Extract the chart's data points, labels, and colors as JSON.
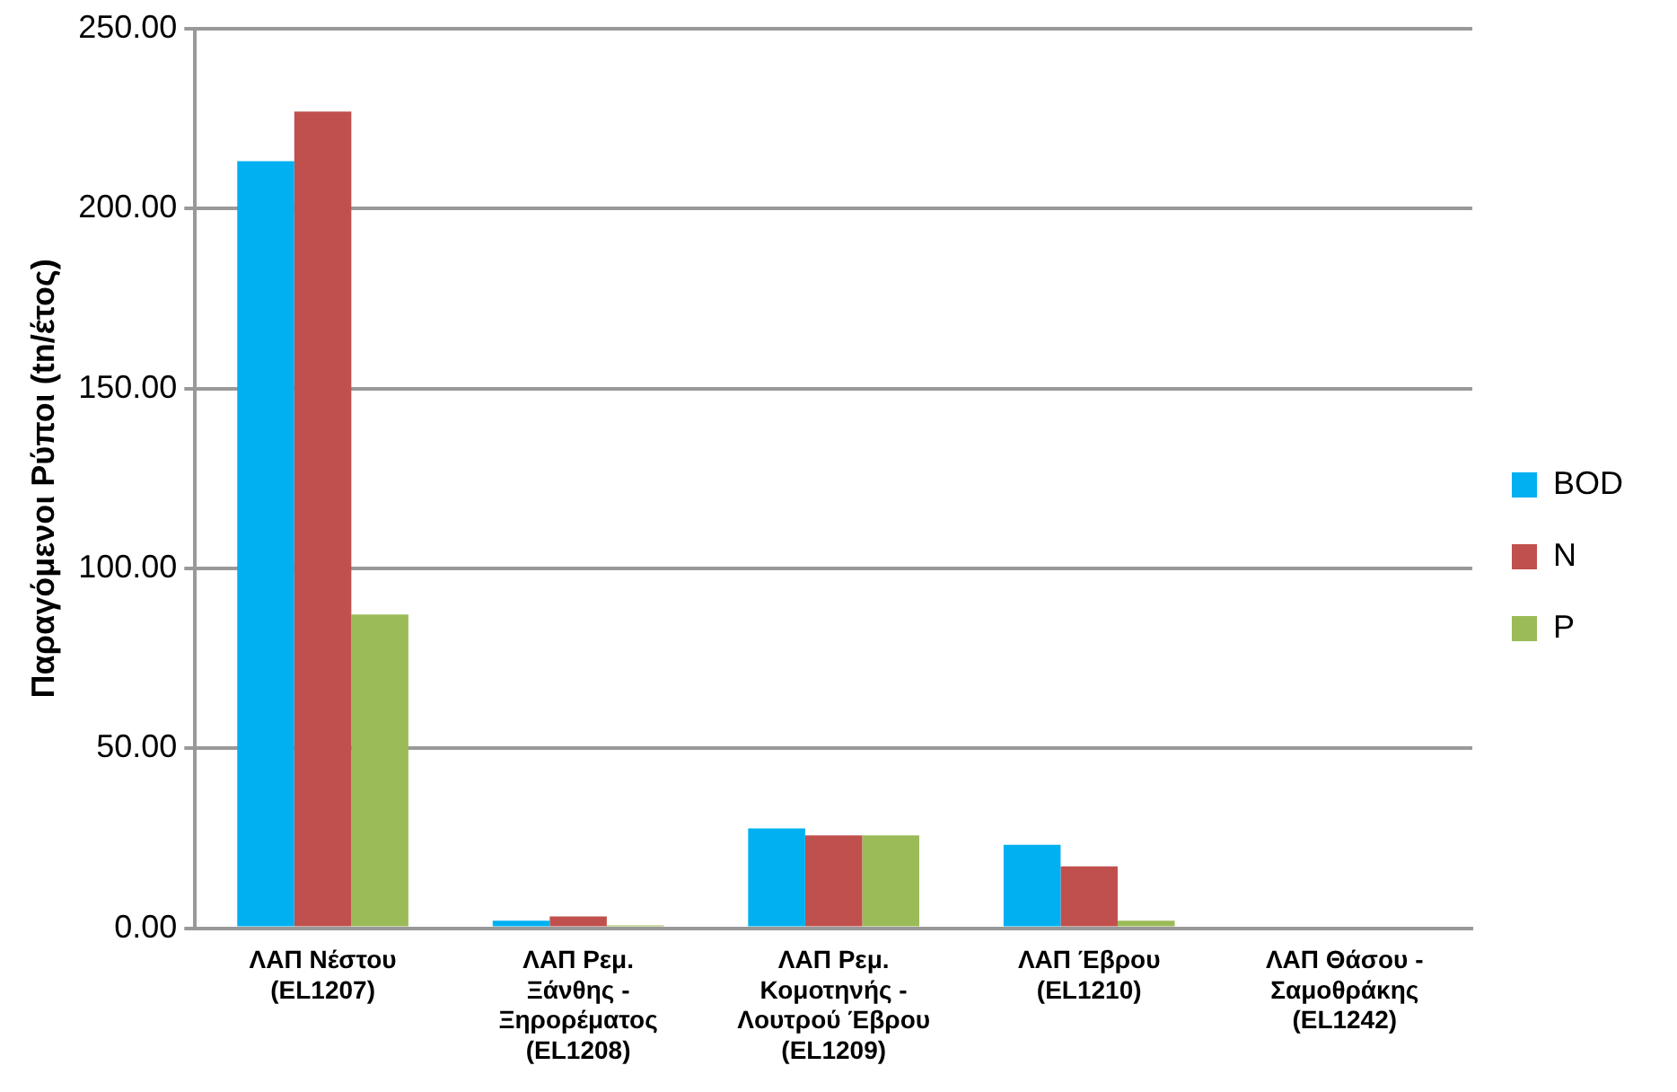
{
  "chart_data": {
    "type": "bar",
    "ylabel": "Παραγόμενοι Ρύποι (tn/έτος)",
    "categories": [
      "ΛΑΠ Νέστου (EL1207)",
      "ΛΑΠ Ρεμ. Ξάνθης - Ξηρορέματος (EL1208)",
      "ΛΑΠ Ρεμ. Κομοτηνής - Λουτρού Έβρου (EL1209)",
      "ΛΑΠ Έβρου (EL1210)",
      "ΛΑΠ Θάσου - Σαμοθράκης (EL1242)"
    ],
    "series": [
      {
        "name": "BOD",
        "color": "#00b0f0",
        "values": [
          213.2,
          2.1,
          27.7,
          23.2,
          0
        ]
      },
      {
        "name": "N",
        "color": "#c0504d",
        "values": [
          227,
          3.3,
          25.8,
          17.2,
          0
        ]
      },
      {
        "name": "P",
        "color": "#9bbb59",
        "values": [
          87.2,
          0.8,
          25.8,
          2.1,
          0
        ]
      }
    ],
    "ylim": [
      0,
      250
    ],
    "yticks": [
      {
        "value": 0,
        "label": "0.00"
      },
      {
        "value": 50,
        "label": "50.00"
      },
      {
        "value": 100,
        "label": "100.00"
      },
      {
        "value": 150,
        "label": "150.00"
      },
      {
        "value": 200,
        "label": "200.00"
      },
      {
        "value": 250,
        "label": "250.00"
      }
    ],
    "grid": "y",
    "legend": "right"
  }
}
